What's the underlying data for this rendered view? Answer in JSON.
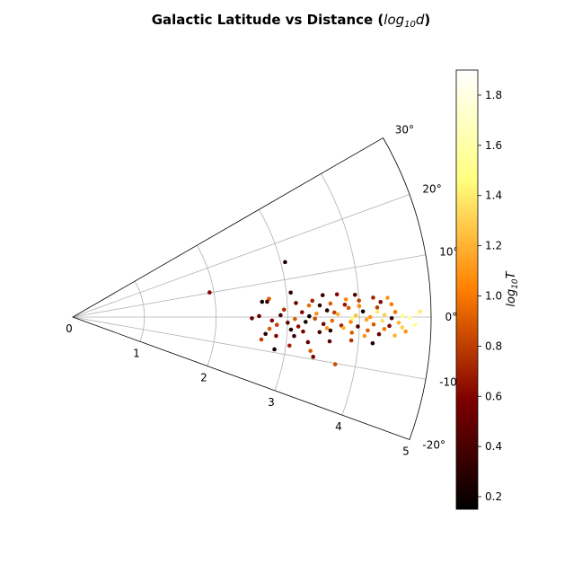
{
  "chart_data": {
    "type": "scatter",
    "projection": "polar-sector",
    "title": "Galactic Latitude vs Distance (",
    "title_math": "log",
    "title_math_sub": "10",
    "title_math_var": "d",
    "title_close": ")",
    "radial_axis": {
      "range": [
        0,
        5
      ],
      "ticks": [
        "0",
        "1",
        "2",
        "3",
        "4",
        "5"
      ],
      "grid": true
    },
    "angular_axis": {
      "range_deg": [
        -20,
        30
      ],
      "ticks": [
        "-20°",
        "-10°",
        "0°",
        "10°",
        "20°",
        "30°"
      ],
      "grid": true
    },
    "colorbar": {
      "label_prefix": "log",
      "label_sub": "10",
      "label_var": "T",
      "range": [
        0.15,
        1.9
      ],
      "ticks": [
        "0.2",
        "0.4",
        "0.6",
        "0.8",
        "1.0",
        "1.2",
        "1.4",
        "1.6",
        "1.8"
      ],
      "colormap": "afmhot"
    },
    "points": [
      {
        "r": 3.06,
        "lat": 14.5,
        "c": 0.25
      },
      {
        "r": 1.94,
        "lat": 10.2,
        "c": 0.6
      },
      {
        "r": 3.06,
        "lat": 6.4,
        "c": 0.3
      },
      {
        "r": 2.75,
        "lat": 5.3,
        "c": 0.9
      },
      {
        "r": 2.72,
        "lat": 4.5,
        "c": 0.35
      },
      {
        "r": 2.65,
        "lat": 4.6,
        "c": 0.2
      },
      {
        "r": 3.12,
        "lat": 3.6,
        "c": 0.5
      },
      {
        "r": 3.35,
        "lat": 3.9,
        "c": 0.7
      },
      {
        "r": 3.3,
        "lat": 2.8,
        "c": 0.95
      },
      {
        "r": 3.45,
        "lat": 2.7,
        "c": 0.3
      },
      {
        "r": 3.6,
        "lat": 3.0,
        "c": 0.9
      },
      {
        "r": 3.82,
        "lat": 3.7,
        "c": 1.05
      },
      {
        "r": 4.0,
        "lat": 3.3,
        "c": 0.8
      },
      {
        "r": 4.3,
        "lat": 2.8,
        "c": 0.6
      },
      {
        "r": 4.45,
        "lat": 2.3,
        "c": 1.0
      },
      {
        "r": 2.6,
        "lat": 0.3,
        "c": 0.5
      },
      {
        "r": 2.9,
        "lat": 0.5,
        "c": 0.4
      },
      {
        "r": 3.2,
        "lat": 1.2,
        "c": 0.6
      },
      {
        "r": 3.4,
        "lat": 0.8,
        "c": 1.1
      },
      {
        "r": 3.55,
        "lat": 1.5,
        "c": 0.3
      },
      {
        "r": 3.7,
        "lat": 0.6,
        "c": 1.2
      },
      {
        "r": 3.85,
        "lat": 1.9,
        "c": 0.9
      },
      {
        "r": 3.95,
        "lat": 0.3,
        "c": 1.25
      },
      {
        "r": 4.05,
        "lat": 1.1,
        "c": 0.2
      },
      {
        "r": 4.15,
        "lat": 0.0,
        "c": 1.1
      },
      {
        "r": 4.25,
        "lat": 1.8,
        "c": 0.8
      },
      {
        "r": 4.35,
        "lat": 0.4,
        "c": 1.3
      },
      {
        "r": 4.5,
        "lat": 0.9,
        "c": 1.0
      },
      {
        "r": 4.6,
        "lat": 0.2,
        "c": 1.5
      },
      {
        "r": 4.7,
        "lat": -0.1,
        "c": 1.6
      },
      {
        "r": 4.8,
        "lat": 0.4,
        "c": 1.75
      },
      {
        "r": 4.55,
        "lat": -1.0,
        "c": 1.2
      },
      {
        "r": 4.42,
        "lat": -1.6,
        "c": 0.6
      },
      {
        "r": 4.32,
        "lat": -0.7,
        "c": 1.35
      },
      {
        "r": 4.2,
        "lat": -1.4,
        "c": 0.9
      },
      {
        "r": 4.1,
        "lat": -0.5,
        "c": 1.15
      },
      {
        "r": 3.98,
        "lat": -1.9,
        "c": 0.4
      },
      {
        "r": 3.88,
        "lat": -1.0,
        "c": 1.05
      },
      {
        "r": 3.75,
        "lat": -1.8,
        "c": 0.7
      },
      {
        "r": 3.62,
        "lat": -0.8,
        "c": 0.95
      },
      {
        "r": 3.5,
        "lat": -1.6,
        "c": 0.5
      },
      {
        "r": 3.38,
        "lat": -0.4,
        "c": 0.85
      },
      {
        "r": 3.25,
        "lat": -1.2,
        "c": 0.25
      },
      {
        "r": 3.15,
        "lat": -2.4,
        "c": 0.65
      },
      {
        "r": 3.0,
        "lat": -1.5,
        "c": 0.45
      },
      {
        "r": 2.85,
        "lat": -2.2,
        "c": 0.8
      },
      {
        "r": 2.75,
        "lat": -3.4,
        "c": 0.9
      },
      {
        "r": 3.05,
        "lat": -3.3,
        "c": 0.3
      },
      {
        "r": 3.22,
        "lat": -3.6,
        "c": 0.55
      },
      {
        "r": 3.45,
        "lat": -3.5,
        "c": 0.4
      },
      {
        "r": 3.6,
        "lat": -3.0,
        "c": 0.3
      },
      {
        "r": 3.9,
        "lat": -3.2,
        "c": 0.9
      },
      {
        "r": 4.08,
        "lat": -3.7,
        "c": 1.1
      },
      {
        "r": 4.28,
        "lat": -3.2,
        "c": 0.5
      },
      {
        "r": 4.5,
        "lat": -3.3,
        "c": 1.2
      },
      {
        "r": 4.65,
        "lat": -2.5,
        "c": 1.1
      },
      {
        "r": 2.7,
        "lat": -5.0,
        "c": 0.3
      },
      {
        "r": 2.65,
        "lat": -6.8,
        "c": 0.8
      },
      {
        "r": 2.85,
        "lat": -5.3,
        "c": 0.6
      },
      {
        "r": 3.1,
        "lat": -4.9,
        "c": 0.35
      },
      {
        "r": 3.05,
        "lat": -7.5,
        "c": 0.7
      },
      {
        "r": 3.3,
        "lat": -6.1,
        "c": 0.5
      },
      {
        "r": 3.35,
        "lat": -8.1,
        "c": 0.9
      },
      {
        "r": 2.85,
        "lat": -9.1,
        "c": 0.2
      },
      {
        "r": 3.4,
        "lat": -9.4,
        "c": 0.55
      },
      {
        "r": 3.72,
        "lat": -10.2,
        "c": 0.85
      },
      {
        "r": 3.6,
        "lat": -5.4,
        "c": 0.45
      },
      {
        "r": 3.9,
        "lat": -4.8,
        "c": 0.75
      },
      {
        "r": 4.2,
        "lat": -5.0,
        "c": 0.3
      },
      {
        "r": 2.78,
        "lat": -1.0,
        "c": 0.6
      },
      {
        "r": 2.95,
        "lat": 2.0,
        "c": 0.75
      },
      {
        "r": 3.5,
        "lat": 5.0,
        "c": 0.35
      },
      {
        "r": 3.7,
        "lat": 4.9,
        "c": 0.6
      },
      {
        "r": 3.95,
        "lat": 4.5,
        "c": 0.4
      },
      {
        "r": 4.2,
        "lat": 3.7,
        "c": 0.7
      },
      {
        "r": 4.4,
        "lat": 3.5,
        "c": 1.1
      },
      {
        "r": 4.0,
        "lat": 2.2,
        "c": 1.05
      },
      {
        "r": 3.8,
        "lat": 2.6,
        "c": 0.65
      },
      {
        "r": 3.65,
        "lat": 1.0,
        "c": 0.8
      },
      {
        "r": 3.9,
        "lat": -0.3,
        "c": 1.45
      },
      {
        "r": 4.12,
        "lat": -2.6,
        "c": 0.9
      },
      {
        "r": 4.35,
        "lat": -2.2,
        "c": 1.0
      },
      {
        "r": 4.6,
        "lat": -1.8,
        "c": 1.3
      },
      {
        "r": 4.78,
        "lat": -1.3,
        "c": 1.5
      },
      {
        "r": 4.85,
        "lat": 0.9,
        "c": 1.4
      },
      {
        "r": 5.0,
        "lat": 0.6,
        "c": 1.85
      },
      {
        "r": 3.3,
        "lat": 0.2,
        "c": 0.2
      },
      {
        "r": 3.1,
        "lat": -0.5,
        "c": 0.9
      },
      {
        "r": 2.5,
        "lat": -0.4,
        "c": 0.5
      },
      {
        "r": 3.55,
        "lat": -2.5,
        "c": 1.1
      },
      {
        "r": 3.78,
        "lat": -2.3,
        "c": 1.2
      },
      {
        "r": 4.45,
        "lat": -0.2,
        "c": 0.35
      },
      {
        "r": 4.25,
        "lat": 1.0,
        "c": 1.4
      }
    ]
  }
}
